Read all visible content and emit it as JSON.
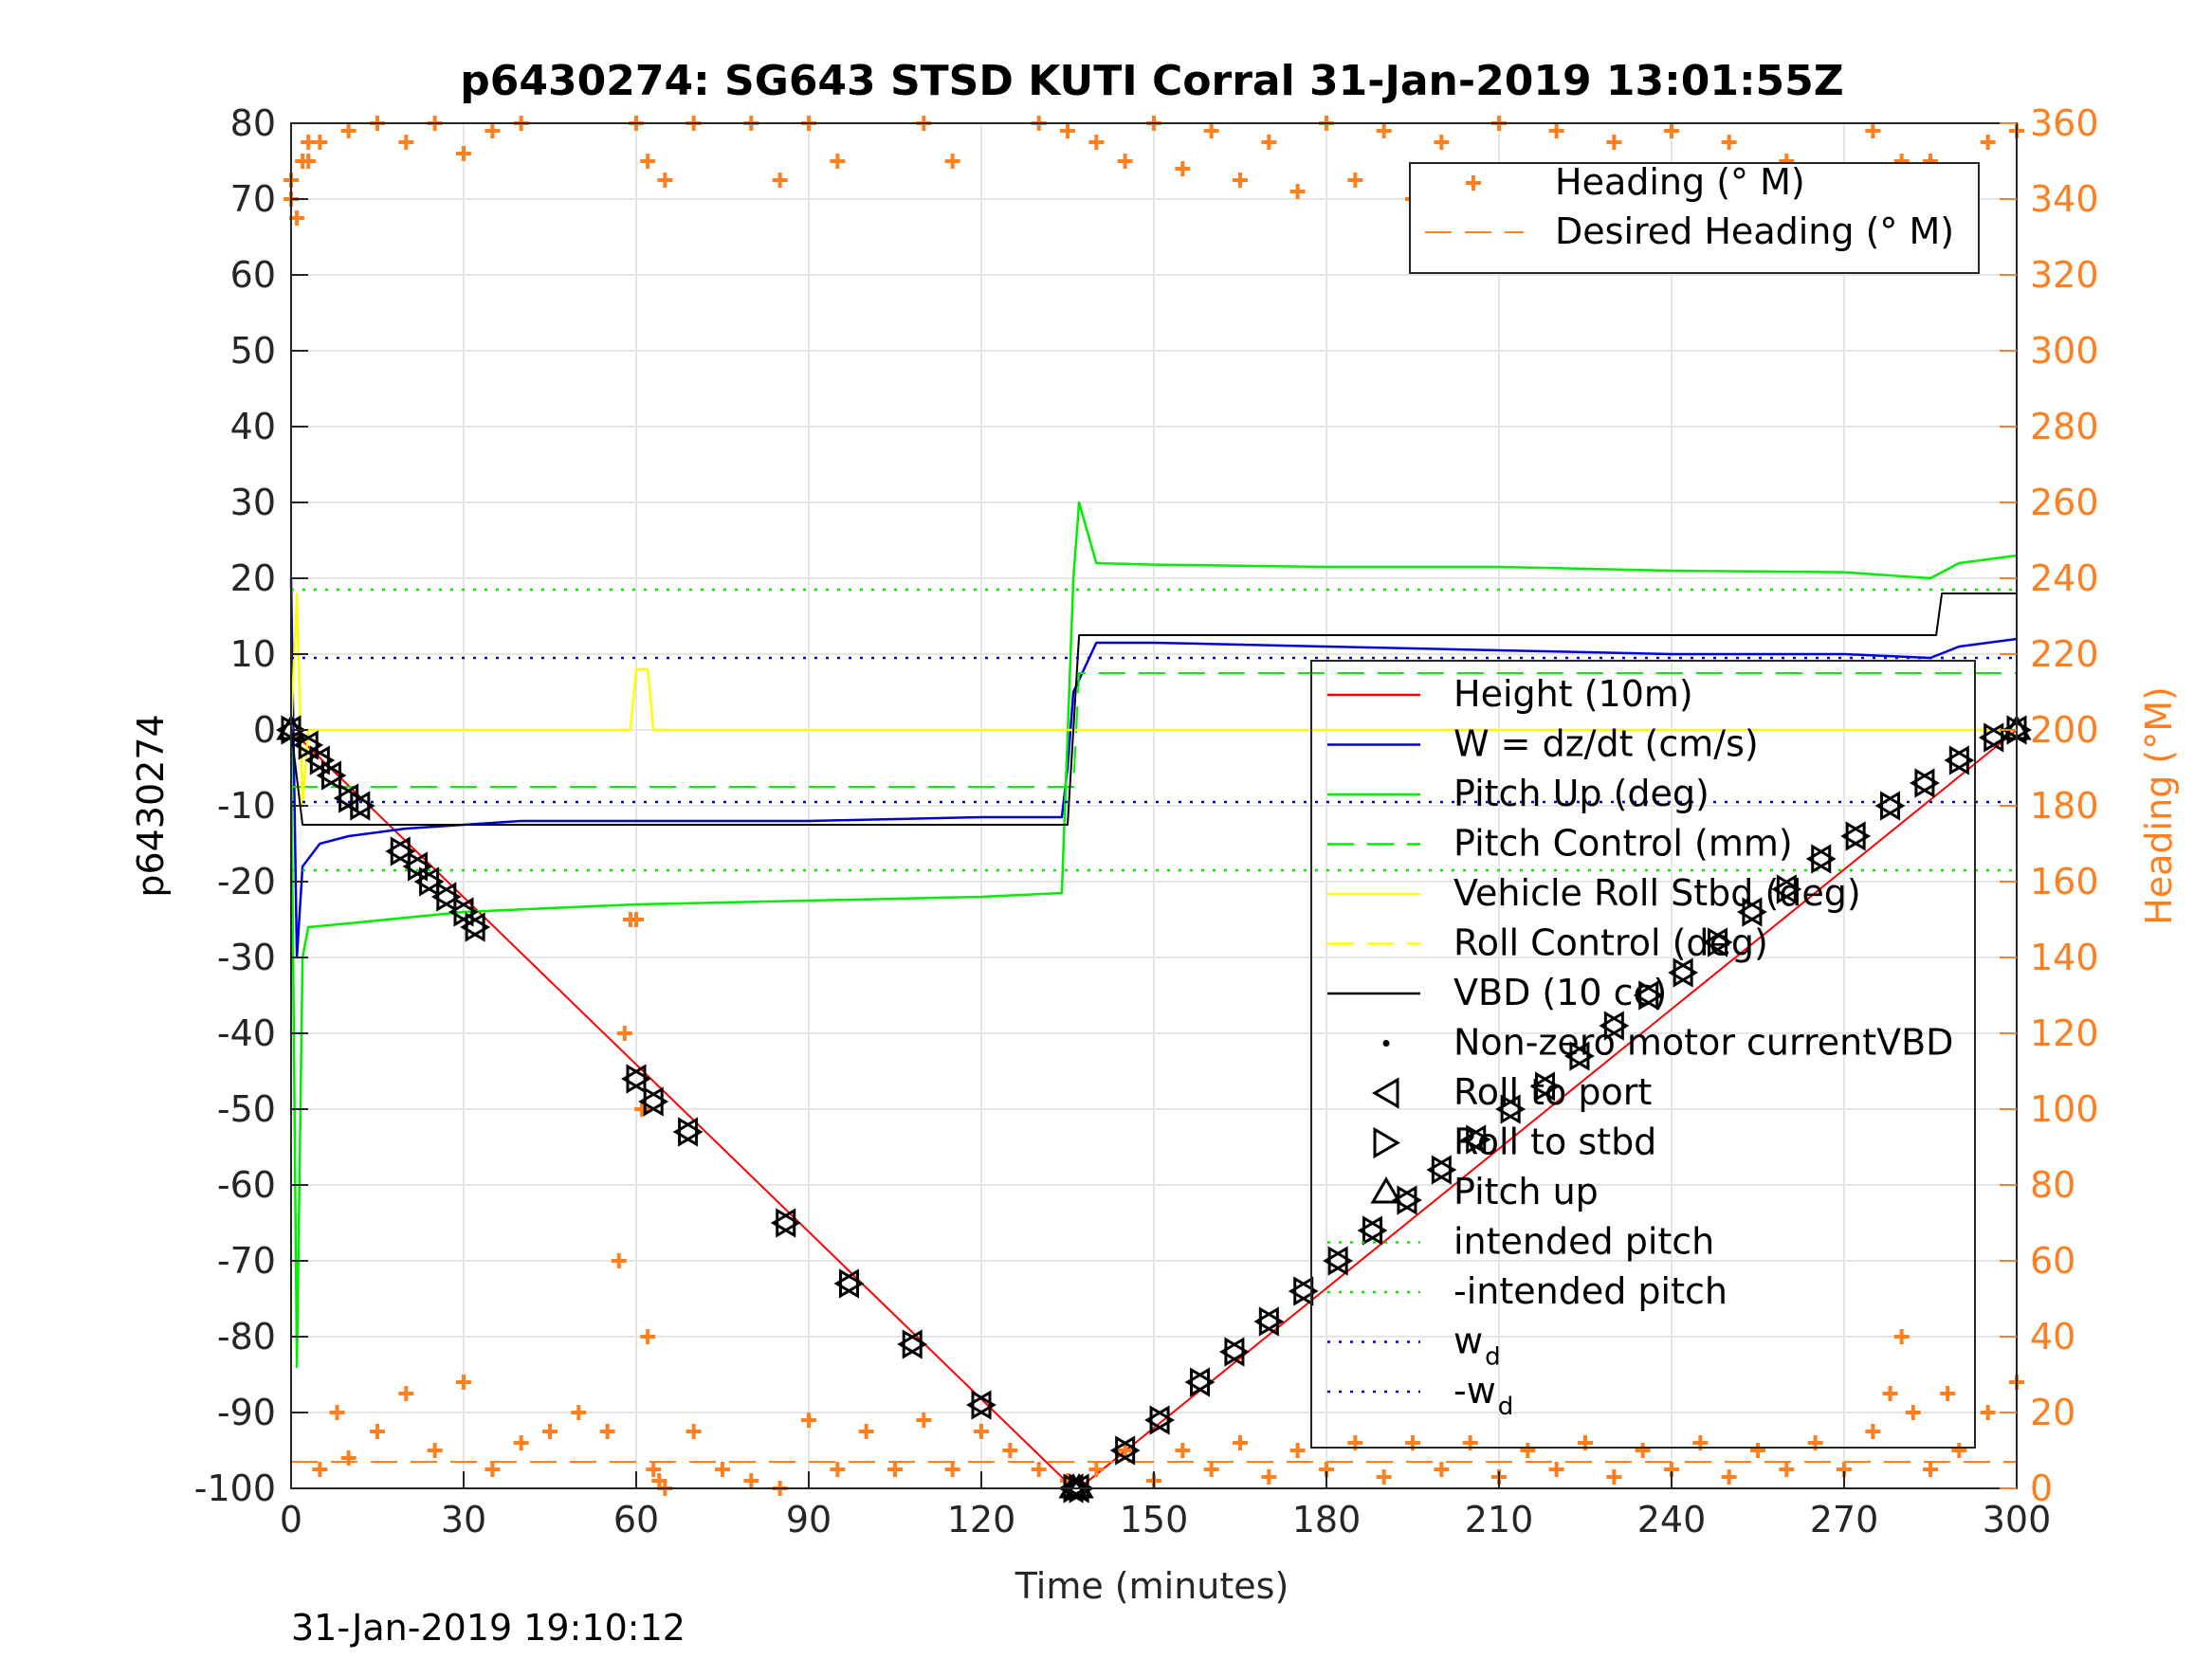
{
  "chart_data": {
    "type": "line",
    "title": "p6430274: SG643 STSD KUTI Corral 31-Jan-2019 13:01:55Z",
    "xlabel": "Time (minutes)",
    "ylabel_left": "p6430274",
    "ylabel_right": "Heading (°M)",
    "footer": "31-Jan-2019 19:10:12",
    "xlim": [
      0,
      300
    ],
    "ylim_left": [
      -100,
      80
    ],
    "ylim_right": [
      0,
      360
    ],
    "x_ticks": [
      0,
      30,
      60,
      90,
      120,
      150,
      180,
      210,
      240,
      270,
      300
    ],
    "y_ticks_left": [
      -100,
      -90,
      -80,
      -70,
      -60,
      -50,
      -40,
      -30,
      -20,
      -10,
      0,
      10,
      20,
      30,
      40,
      50,
      60,
      70,
      80
    ],
    "y_ticks_right": [
      0,
      20,
      40,
      60,
      80,
      100,
      120,
      140,
      160,
      180,
      200,
      220,
      240,
      260,
      280,
      300,
      320,
      340,
      360
    ],
    "grid": true,
    "colors": {
      "height": "#ff0000",
      "w": "#0000dd",
      "pitch": "#00ee00",
      "roll": "#ffff00",
      "vbd": "#000000",
      "heading": "#ff7f1f",
      "axis": "#262626"
    },
    "legend_heading": {
      "placement": "top-right",
      "entries": [
        "Heading (° M)",
        "Desired Heading (° M)"
      ]
    },
    "legend_main": {
      "placement": "right",
      "entries": [
        "Height (10m)",
        "W = dz/dt (cm/s)",
        "Pitch Up (deg)",
        "Pitch Control (mm)",
        "Vehicle Roll Stbd (deg)",
        "Roll Control (deg)",
        "VBD (10 cc)",
        "Non-zero motor currentVBD",
        "Roll to port",
        "Roll to stbd",
        "Pitch up",
        "intended pitch",
        "-intended pitch",
        "w",
        "-w"
      ],
      "subscripts": {
        "13": "d",
        "14": "d"
      }
    },
    "series": [
      {
        "name": "Height (10m)",
        "axis": "left",
        "x": [
          0,
          136,
          137,
          300
        ],
        "y": [
          0,
          -100,
          -100,
          0
        ]
      },
      {
        "name": "W = dz/dt (cm/s)",
        "axis": "left",
        "x": [
          0,
          1,
          2,
          5,
          10,
          20,
          30,
          40,
          60,
          90,
          120,
          134,
          135,
          136,
          140,
          150,
          180,
          210,
          240,
          270,
          285,
          290,
          300
        ],
        "y": [
          20,
          -30,
          -18,
          -15,
          -14,
          -13,
          -12.5,
          -12,
          -12,
          -12,
          -11.5,
          -11.5,
          -5,
          5,
          11.5,
          11.5,
          11,
          10.5,
          10,
          10,
          9.5,
          11,
          12
        ]
      },
      {
        "name": "Pitch Up (deg)",
        "axis": "left",
        "x": [
          0,
          1,
          2,
          3,
          10,
          30,
          60,
          90,
          120,
          134,
          136,
          137,
          140,
          150,
          180,
          210,
          240,
          270,
          285,
          290,
          300
        ],
        "y": [
          0,
          -84,
          -30,
          -26,
          -25.5,
          -24,
          -23,
          -22.5,
          -22,
          -21.5,
          20,
          30,
          22,
          21.8,
          21.5,
          21.5,
          21,
          20.8,
          20,
          22,
          23
        ]
      },
      {
        "name": "Pitch Control (mm)",
        "axis": "left",
        "x": [
          0,
          136,
          137,
          300
        ],
        "y": [
          -7.5,
          -7.5,
          7.5,
          7.5
        ]
      },
      {
        "name": "Vehicle Roll Stbd (deg)",
        "axis": "left",
        "x": [
          0,
          1,
          2,
          3,
          20,
          59,
          60,
          62,
          63,
          136,
          137,
          300
        ],
        "y": [
          0,
          18,
          -10,
          0,
          0,
          0,
          8,
          8,
          0,
          0,
          0,
          0
        ]
      },
      {
        "name": "VBD (10 cc)",
        "axis": "left",
        "x": [
          0,
          2,
          134,
          135,
          136,
          137,
          286,
          287,
          300
        ],
        "y": [
          0,
          -12.5,
          -12.5,
          -12.5,
          0,
          12.5,
          12.5,
          18,
          18
        ]
      },
      {
        "name": "intended pitch",
        "axis": "left",
        "x": [
          0,
          300
        ],
        "y": [
          18.5,
          18.5
        ]
      },
      {
        "name": "-intended pitch",
        "axis": "left",
        "x": [
          0,
          300
        ],
        "y": [
          -18.5,
          -18.5
        ]
      },
      {
        "name": "w",
        "axis": "left",
        "x": [
          0,
          300
        ],
        "y": [
          9.5,
          9.5
        ]
      },
      {
        "name": "-w",
        "axis": "left",
        "x": [
          0,
          300
        ],
        "y": [
          -9.5,
          -9.5
        ]
      },
      {
        "name": "Desired Heading (° M)",
        "axis": "right",
        "x": [
          0,
          300
        ],
        "y": [
          7,
          7
        ]
      },
      {
        "name": "Heading (° M)",
        "axis": "right",
        "x": [
          0,
          1,
          2,
          3,
          5,
          8,
          10,
          15,
          20,
          25,
          30,
          35,
          40,
          45,
          50,
          55,
          57,
          58,
          59,
          60,
          61,
          62,
          63,
          64,
          65,
          70,
          75,
          80,
          85,
          90,
          95,
          100,
          105,
          110,
          115,
          120,
          125,
          130,
          135,
          140,
          145,
          150,
          155,
          160,
          165,
          170,
          175,
          180,
          185,
          190,
          195,
          200,
          205,
          210,
          215,
          220,
          225,
          230,
          235,
          240,
          245,
          250,
          255,
          260,
          265,
          270,
          275,
          278,
          280,
          282,
          285,
          288,
          290,
          295,
          300
        ],
        "y": [
          345,
          335,
          350,
          355,
          5,
          20,
          8,
          15,
          25,
          10,
          28,
          5,
          12,
          15,
          20,
          15,
          60,
          120,
          150,
          150,
          100,
          40,
          5,
          2,
          0,
          15,
          5,
          2,
          0,
          18,
          5,
          15,
          5,
          18,
          5,
          15,
          10,
          5,
          2,
          5,
          10,
          2,
          10,
          5,
          12,
          3,
          10,
          5,
          12,
          3,
          12,
          5,
          12,
          3,
          10,
          5,
          12,
          3,
          10,
          5,
          12,
          3,
          10,
          5,
          12,
          5,
          15,
          25,
          40,
          20,
          5,
          25,
          10,
          20,
          28
        ]
      },
      {
        "name": "Heading (° M) upper",
        "axis": "right",
        "x": [
          0,
          3,
          5,
          10,
          15,
          20,
          25,
          30,
          35,
          40,
          60,
          62,
          65,
          70,
          80,
          85,
          90,
          95,
          110,
          115,
          130,
          135,
          140,
          145,
          150,
          155,
          160,
          165,
          170,
          175,
          180,
          185,
          190,
          195,
          200,
          205,
          210,
          215,
          220,
          225,
          230,
          235,
          240,
          245,
          250,
          255,
          260,
          265,
          270,
          275,
          280,
          283,
          285,
          290,
          295,
          300
        ],
        "y": [
          340,
          350,
          355,
          358,
          360,
          355,
          360,
          352,
          358,
          360,
          360,
          350,
          345,
          360,
          360,
          345,
          360,
          350,
          360,
          350,
          360,
          358,
          355,
          350,
          360,
          348,
          358,
          345,
          355,
          342,
          360,
          345,
          358,
          340,
          355,
          340,
          360,
          345,
          358,
          342,
          355,
          340,
          358,
          345,
          355,
          340,
          350,
          345,
          340,
          358,
          350,
          335,
          350,
          340,
          355,
          358
        ]
      }
    ],
    "markers": {
      "roll_to_port_and_stbd": [
        [
          0,
          0
        ],
        [
          3,
          -2
        ],
        [
          5,
          -4
        ],
        [
          7,
          -6
        ],
        [
          10,
          -9
        ],
        [
          12,
          -10
        ],
        [
          19,
          -16
        ],
        [
          22,
          -18
        ],
        [
          24,
          -20
        ],
        [
          27,
          -22
        ],
        [
          30,
          -24
        ],
        [
          32,
          -26
        ],
        [
          60,
          -46
        ],
        [
          63,
          -49
        ],
        [
          69,
          -53
        ],
        [
          86,
          -65
        ],
        [
          97,
          -73
        ],
        [
          108,
          -81
        ],
        [
          120,
          -89
        ],
        [
          136,
          -100
        ],
        [
          137,
          -100
        ],
        [
          145,
          -95
        ],
        [
          151,
          -91
        ],
        [
          158,
          -86
        ],
        [
          164,
          -82
        ],
        [
          170,
          -78
        ],
        [
          176,
          -74
        ],
        [
          182,
          -70
        ],
        [
          188,
          -66
        ],
        [
          194,
          -62
        ],
        [
          200,
          -58
        ],
        [
          206,
          -54
        ],
        [
          212,
          -50
        ],
        [
          218,
          -47
        ],
        [
          224,
          -43
        ],
        [
          230,
          -39
        ],
        [
          236,
          -35
        ],
        [
          242,
          -32
        ],
        [
          248,
          -28
        ],
        [
          254,
          -24
        ],
        [
          260,
          -21
        ],
        [
          266,
          -17
        ],
        [
          272,
          -14
        ],
        [
          278,
          -10
        ],
        [
          284,
          -7
        ],
        [
          290,
          -4
        ],
        [
          296,
          -1
        ],
        [
          300,
          0
        ]
      ],
      "pitch_up": [
        [
          0,
          0
        ],
        [
          136,
          -100
        ],
        [
          137,
          -100
        ],
        [
          300,
          0
        ]
      ]
    }
  }
}
